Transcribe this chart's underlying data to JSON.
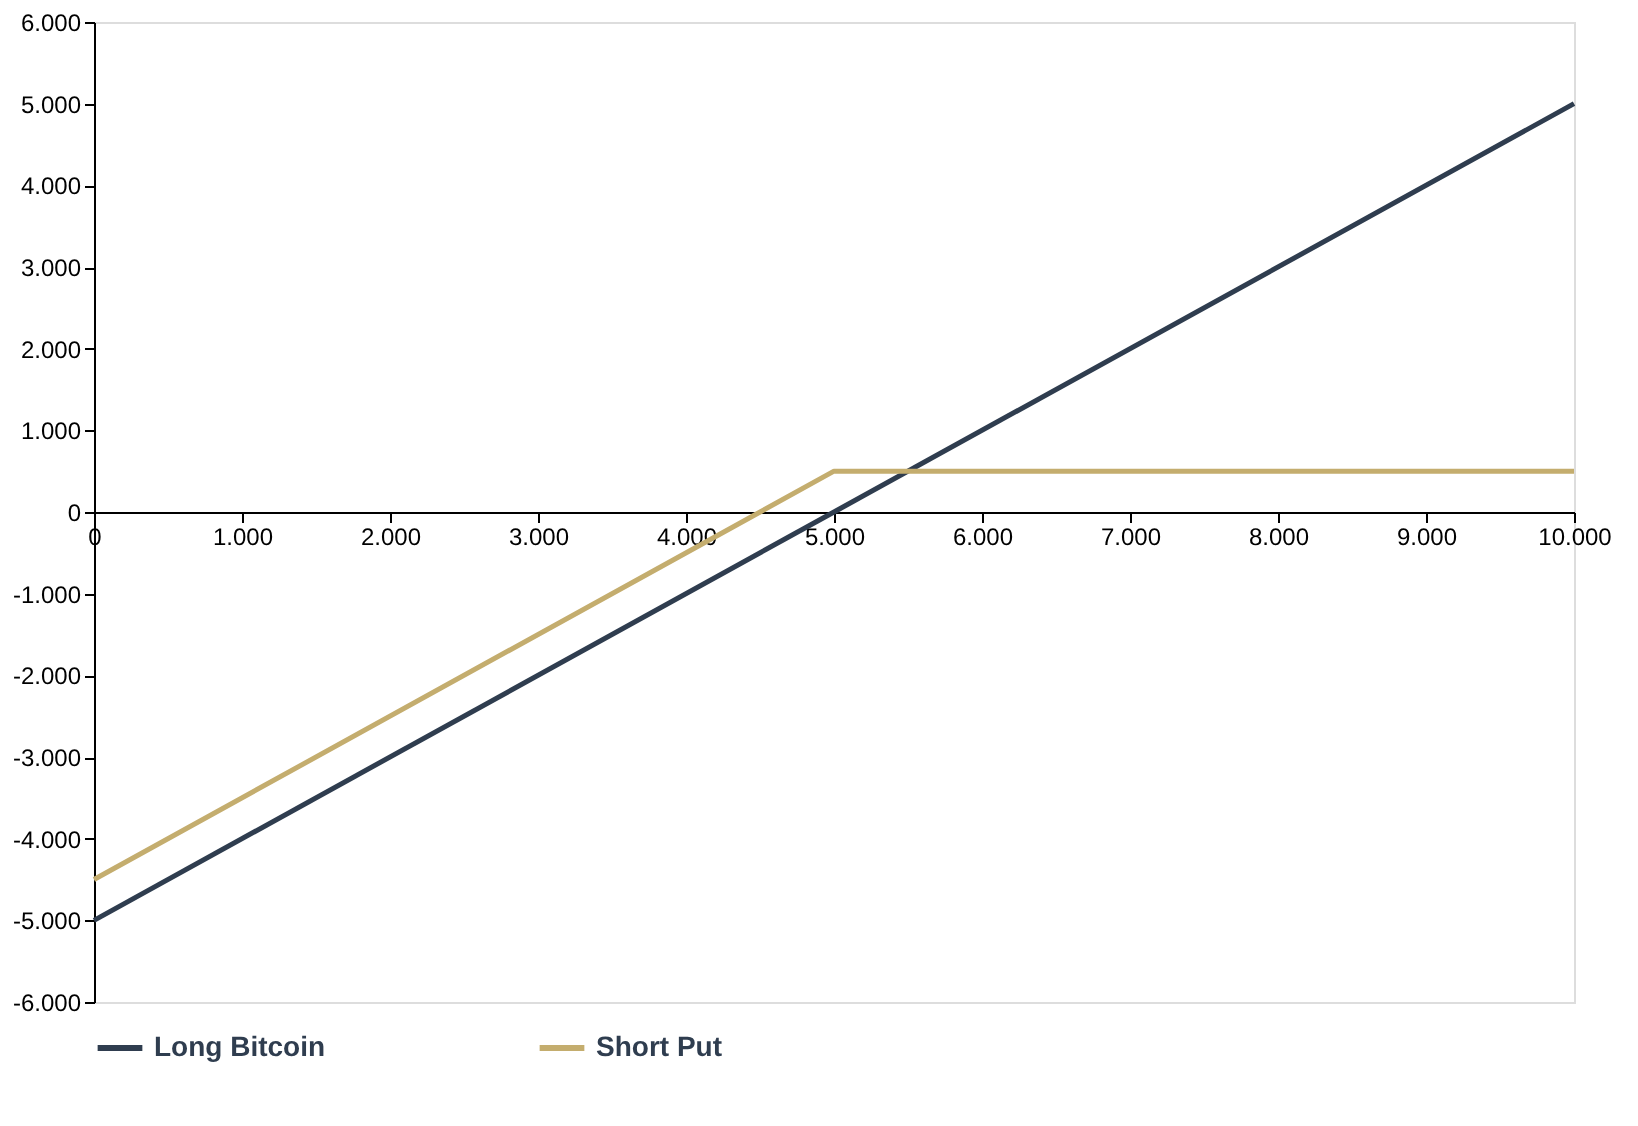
{
  "chart_data": {
    "type": "line",
    "x": [
      0,
      5000,
      10000
    ],
    "series": [
      {
        "name": "Long Bitcoin",
        "color": "#2f3d4f",
        "values": [
          -5000,
          0,
          5000
        ]
      },
      {
        "name": "Short Put",
        "color": "#c4ad6e",
        "values": [
          -4500,
          500,
          500
        ]
      }
    ],
    "xlim": [
      0,
      10000
    ],
    "xticks": [
      0,
      {
        "value": 1000,
        "label": "1.000"
      },
      {
        "value": 2000,
        "label": "2.000"
      },
      {
        "value": 3000,
        "label": "3.000"
      },
      {
        "value": 4000,
        "label": "4.000"
      },
      {
        "value": 5000,
        "label": "5.000"
      },
      {
        "value": 6000,
        "label": "6.000"
      },
      {
        "value": 7000,
        "label": "7.000"
      },
      {
        "value": 8000,
        "label": "8.000"
      },
      {
        "value": 9000,
        "label": "9.000"
      },
      {
        "value": 10000,
        "label": "10.000"
      }
    ],
    "ylim": [
      -6000,
      6000
    ],
    "yticks": [
      {
        "value": -6000,
        "label": "-6.000"
      },
      {
        "value": -5000,
        "label": "-5.000"
      },
      {
        "value": -4000,
        "label": "-4.000"
      },
      {
        "value": -3000,
        "label": "-3.000"
      },
      {
        "value": -2000,
        "label": "-2.000"
      },
      {
        "value": -1000,
        "label": "-1.000"
      },
      0,
      {
        "value": 1000,
        "label": "1.000"
      },
      {
        "value": 2000,
        "label": "2.000"
      },
      {
        "value": 3000,
        "label": "3.000"
      },
      {
        "value": 4000,
        "label": "4.000"
      },
      {
        "value": 5000,
        "label": "5.000"
      },
      {
        "value": 6000,
        "label": "6.000"
      }
    ],
    "grid": false,
    "legend": "bottom",
    "marker": "none",
    "line_style": "solid"
  }
}
